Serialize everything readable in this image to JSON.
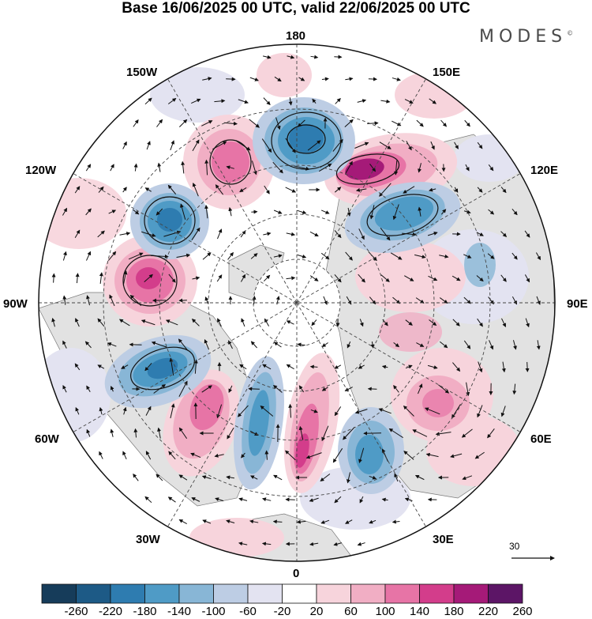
{
  "header": {
    "title": "Base 16/06/2025 00 UTC, valid 22/06/2025 00 UTC"
  },
  "brand": {
    "name": "MODES",
    "mark": "©"
  },
  "map": {
    "projection": "polar-stereographic-north",
    "longitude_labels": {
      "top": "180",
      "top_right": "150E",
      "upper_right": "120E",
      "right": "90E",
      "lower_right": "60E",
      "bottom_right": "30E",
      "bottom": "0",
      "bottom_left": "30W",
      "lower_left": "60W",
      "left": "90W",
      "upper_left": "120W",
      "top_left": "150W"
    },
    "vector_reference": "30"
  },
  "colorbar": {
    "tick_labels": [
      "-260",
      "-220",
      "-180",
      "-140",
      "-100",
      "-60",
      "-20",
      "20",
      "60",
      "100",
      "140",
      "180",
      "220",
      "260"
    ],
    "colors": [
      "#163c5a",
      "#1d5a86",
      "#2e7cb0",
      "#4f9bc6",
      "#88b6d6",
      "#bdcde4",
      "#e3e3f1",
      "#ffffff",
      "#f7d4dc",
      "#f1aec4",
      "#e774a6",
      "#d33d8b",
      "#a51a78",
      "#5c1566"
    ]
  },
  "colors": {
    "land": "#e2e2e2",
    "ocean": "#ffffff",
    "coast": "#7a7a7a",
    "graticule": "#444444"
  }
}
